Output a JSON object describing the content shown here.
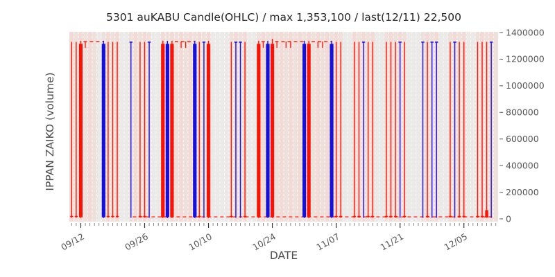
{
  "chart_data": {
    "type": "candlestick_ohlc_daily",
    "title": "5301 auKABU Candle(OHLC) / max 1,353,100 / last(12/11) 22,500",
    "xlabel": "DATE",
    "ylabel": "IPPAN ZAIKO (volume)",
    "ylim": [
      0,
      1400000
    ],
    "ytick_values": [
      0,
      200000,
      400000,
      600000,
      800000,
      1000000,
      1200000,
      1400000
    ],
    "ytick_labels": [
      "0",
      "200000",
      "400000",
      "600000",
      "800000",
      "1000000",
      "1200000",
      "1400000"
    ],
    "xtick_days": [
      2,
      16,
      30,
      44,
      58,
      72,
      86
    ],
    "xtick_labels": [
      "09/12",
      "09/26",
      "10/10",
      "10/24",
      "11/07",
      "11/21",
      "12/05"
    ],
    "start_date": "09/10",
    "end_date": "12/12",
    "days_total": 94,
    "max_volume": 1353100,
    "last_date": "12/11",
    "last_value": 22500,
    "grid": "white dashed vertical line per day",
    "legend": "none",
    "colors": {
      "down_red": "#fa1205",
      "up_blue": "#1610dd",
      "dashed_line": "#fa1205",
      "band_pink_a": "#f2dbd7",
      "band_pink_b": "#eee0db",
      "band_closed": "#ebeae8",
      "gridline": "#fafafa",
      "tick_text": "#555555",
      "title_text": "#262626",
      "axis_label_text": "#4d4d4d"
    },
    "value_levels": {
      "bar_top": 1330000,
      "thick_body_top": 1315000,
      "thick_wick_high": 1338000,
      "bar_bottom": 12000,
      "dash_top_level": 1332000,
      "dash_bottom_level": 15000,
      "cap_bottom_level": 18000,
      "cap_top_level": 1328000,
      "flat_tick_low": 1285000
    },
    "candle_types_legend": {
      "thick_red": "down day, wide body spanning ~1,330,000 to ~20,000",
      "thick_blue": "up day, wide body spanning ~20,000 to ~1,330,000",
      "thin_red": "down day, thin high-low line with close mark near 0",
      "thin_blue": "up day, thin high-low line with close mark near top",
      "flat_top": "no-range day pinned near 1,330,000 (red dash)",
      "flat_top_tick": "near-flat day at top with small downward tick",
      "flat_bottom": "no-range day pinned near 0 (red dash)",
      "thin_red_body_bottom": "down day with small red body near 0"
    },
    "closed_days": [
      6,
      11,
      12,
      18,
      19,
      31,
      32,
      33,
      34,
      39,
      40,
      60,
      61,
      67,
      68,
      74,
      75,
      76,
      81,
      82,
      87,
      88
    ],
    "dashed_top_segments_days": [
      [
        2.6,
        7
      ],
      [
        22.6,
        27
      ],
      [
        41.6,
        43
      ],
      [
        44.6,
        51
      ],
      [
        52.6,
        57
      ]
    ],
    "dashed_bottom_segment_days": [
      13.4,
      92.6
    ],
    "candles": [
      {
        "d": 0,
        "date": "09/10",
        "type": "thin_red"
      },
      {
        "d": 1,
        "date": "09/11",
        "type": "thin_red"
      },
      {
        "d": 2,
        "date": "09/12",
        "type": "thick_red"
      },
      {
        "d": 3,
        "date": "09/13",
        "type": "flat_top_tick"
      },
      {
        "d": 4,
        "date": "09/14",
        "type": "flat_top"
      },
      {
        "d": 5,
        "date": "09/15",
        "type": "flat_top"
      },
      {
        "d": 7,
        "date": "09/17",
        "type": "thick_blue"
      },
      {
        "d": 8,
        "date": "09/18",
        "type": "thin_red"
      },
      {
        "d": 9,
        "date": "09/19",
        "type": "thin_red"
      },
      {
        "d": 10,
        "date": "09/20",
        "type": "thin_red"
      },
      {
        "d": 13,
        "date": "09/23",
        "type": "thin_blue"
      },
      {
        "d": 14,
        "date": "09/24",
        "type": "flat_bottom"
      },
      {
        "d": 15,
        "date": "09/25",
        "type": "thin_red"
      },
      {
        "d": 16,
        "date": "09/26",
        "type": "thin_red"
      },
      {
        "d": 17,
        "date": "09/27",
        "type": "thin_blue"
      },
      {
        "d": 20,
        "date": "09/30",
        "type": "thick_red"
      },
      {
        "d": 21,
        "date": "10/01",
        "type": "thick_blue"
      },
      {
        "d": 22,
        "date": "10/02",
        "type": "thick_red"
      },
      {
        "d": 23,
        "date": "10/03",
        "type": "flat_top"
      },
      {
        "d": 24,
        "date": "10/04",
        "type": "flat_top_tick"
      },
      {
        "d": 25,
        "date": "10/05",
        "type": "flat_top_tick"
      },
      {
        "d": 26,
        "date": "10/06",
        "type": "flat_top"
      },
      {
        "d": 27,
        "date": "10/07",
        "type": "thick_blue"
      },
      {
        "d": 28,
        "date": "10/08",
        "type": "thin_red"
      },
      {
        "d": 29,
        "date": "10/09",
        "type": "thin_blue"
      },
      {
        "d": 30,
        "date": "10/10",
        "type": "thick_red"
      },
      {
        "d": 35,
        "date": "10/15",
        "type": "thin_red"
      },
      {
        "d": 36,
        "date": "10/16",
        "type": "thin_blue"
      },
      {
        "d": 37,
        "date": "10/17",
        "type": "thin_blue"
      },
      {
        "d": 38,
        "date": "10/18",
        "type": "thin_red"
      },
      {
        "d": 41,
        "date": "10/21",
        "type": "thick_red"
      },
      {
        "d": 42,
        "date": "10/22",
        "type": "flat_top_tick"
      },
      {
        "d": 43,
        "date": "10/23",
        "type": "thick_blue"
      },
      {
        "d": 44,
        "date": "10/24",
        "type": "thick_red",
        "high": 1353100
      },
      {
        "d": 45,
        "date": "10/25",
        "type": "flat_top_tick"
      },
      {
        "d": 46,
        "date": "10/26",
        "type": "flat_top"
      },
      {
        "d": 47,
        "date": "10/27",
        "type": "flat_top_tick"
      },
      {
        "d": 48,
        "date": "10/28",
        "type": "flat_top_tick"
      },
      {
        "d": 49,
        "date": "10/29",
        "type": "flat_top"
      },
      {
        "d": 50,
        "date": "10/30",
        "type": "flat_top"
      },
      {
        "d": 51,
        "date": "10/31",
        "type": "thick_blue"
      },
      {
        "d": 52,
        "date": "11/01",
        "type": "thick_red"
      },
      {
        "d": 53,
        "date": "11/02",
        "type": "flat_top"
      },
      {
        "d": 54,
        "date": "11/03",
        "type": "flat_top_tick"
      },
      {
        "d": 55,
        "date": "11/04",
        "type": "flat_top_tick"
      },
      {
        "d": 56,
        "date": "11/05",
        "type": "flat_top"
      },
      {
        "d": 57,
        "date": "11/06",
        "type": "thick_blue"
      },
      {
        "d": 58,
        "date": "11/07",
        "type": "thin_red"
      },
      {
        "d": 59,
        "date": "11/08",
        "type": "thin_red"
      },
      {
        "d": 62,
        "date": "11/11",
        "type": "thin_red"
      },
      {
        "d": 63,
        "date": "11/12",
        "type": "thin_red"
      },
      {
        "d": 64,
        "date": "11/13",
        "type": "thin_blue"
      },
      {
        "d": 65,
        "date": "11/14",
        "type": "thin_red"
      },
      {
        "d": 66,
        "date": "11/15",
        "type": "thin_red"
      },
      {
        "d": 69,
        "date": "11/18",
        "type": "thin_red"
      },
      {
        "d": 70,
        "date": "11/19",
        "type": "thin_red"
      },
      {
        "d": 71,
        "date": "11/20",
        "type": "thin_red"
      },
      {
        "d": 72,
        "date": "11/21",
        "type": "thin_blue"
      },
      {
        "d": 73,
        "date": "11/22",
        "type": "thin_red"
      },
      {
        "d": 77,
        "date": "11/26",
        "type": "thin_blue"
      },
      {
        "d": 78,
        "date": "11/27",
        "type": "thin_red"
      },
      {
        "d": 79,
        "date": "11/28",
        "type": "thin_blue"
      },
      {
        "d": 80,
        "date": "11/29",
        "type": "thin_blue"
      },
      {
        "d": 83,
        "date": "12/02",
        "type": "thin_red"
      },
      {
        "d": 84,
        "date": "12/03",
        "type": "thin_blue"
      },
      {
        "d": 85,
        "date": "12/04",
        "type": "thin_red"
      },
      {
        "d": 86,
        "date": "12/05",
        "type": "thin_red"
      },
      {
        "d": 89,
        "date": "12/08",
        "type": "thin_red"
      },
      {
        "d": 90,
        "date": "12/09",
        "type": "thin_red"
      },
      {
        "d": 91,
        "date": "12/10",
        "type": "thin_red_body_bottom"
      },
      {
        "d": 92,
        "date": "12/11",
        "type": "thin_blue",
        "close": 22500
      }
    ]
  }
}
